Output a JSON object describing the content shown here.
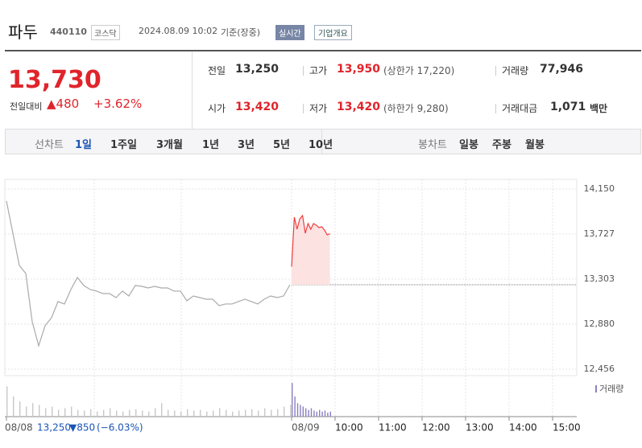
{
  "header": {
    "name": "파두",
    "code": "440110",
    "market": "코스닥",
    "datetime": "2024.08.09 10:02",
    "basis": "기준(장중)",
    "realtime": "실시간",
    "company": "기업개요"
  },
  "price": {
    "current": "13,730",
    "change_label": "전일대비",
    "change": "▲480",
    "change_pct": "+3.62%"
  },
  "stats": {
    "rows": [
      [
        {
          "label": "전일",
          "value": "13,250"
        },
        {
          "label": "고가",
          "value": "13,950",
          "sub": "(상한가 17,220)"
        },
        {
          "label": "거래량",
          "value": "77,946"
        }
      ],
      [
        {
          "label": "시가",
          "value": "13,420"
        },
        {
          "label": "저가",
          "value": "13,420",
          "sub": "(하한가 9,280)"
        },
        {
          "label": "거래대금",
          "value": "1,071",
          "unit": "백만"
        }
      ]
    ]
  },
  "tabs": {
    "line_label": "선차트",
    "line_periods": [
      "1일",
      "1주일",
      "3개월",
      "1년",
      "3년",
      "5년",
      "10년"
    ],
    "candle_label": "봉차트",
    "candle_periods": [
      "일봉",
      "주봉",
      "월봉"
    ]
  },
  "chart_data": {
    "type": "line",
    "xticks": [
      "08/08",
      "08/09",
      "10:00",
      "11:00",
      "12:00",
      "13:00",
      "14:00",
      "15:00"
    ],
    "ylim": [
      12456,
      14150
    ],
    "yticks": [
      {
        "value": 14150,
        "label": "14,150"
      },
      {
        "value": 13727,
        "label": "13,727"
      },
      {
        "value": 13303,
        "label": "13,303"
      },
      {
        "value": 12880,
        "label": "12,880"
      },
      {
        "value": 12456,
        "label": "12,456"
      }
    ],
    "reference": 13250,
    "series": [
      {
        "color": "#aaaaaa",
        "values": [
          14037,
          13734,
          13432,
          13356,
          12902,
          12676,
          12865,
          12940,
          13092,
          13069,
          13205,
          13318,
          13243,
          13205,
          13190,
          13167,
          13167,
          13129,
          13190,
          13144,
          13243,
          13235,
          13220,
          13235,
          13220,
          13220,
          13190,
          13190,
          13099,
          13144,
          13129,
          13114,
          13114,
          13054,
          13069,
          13069,
          13092,
          13114,
          13092,
          13069,
          13114,
          13144,
          13129,
          13144,
          13250
        ]
      },
      {
        "color": "#f03c3c",
        "values": [
          13420,
          13885,
          13772,
          13870,
          13900,
          13734,
          13825,
          13772,
          13825,
          13810,
          13787,
          13795,
          13765,
          13719,
          13730
        ]
      }
    ],
    "volume": {
      "name": "거래량",
      "vlim": [
        0,
        110
      ],
      "series": [
        {
          "color": "#c8c8c8",
          "values": [
            90,
            60,
            45,
            30,
            40,
            35,
            25,
            30,
            20,
            25,
            30,
            20,
            18,
            22,
            15,
            20,
            25,
            18,
            15,
            20,
            22,
            18,
            15,
            25,
            40,
            20,
            18,
            15,
            22,
            18,
            20,
            15,
            18,
            25,
            20,
            15,
            18,
            20,
            22,
            18,
            25,
            20,
            22,
            30,
            35
          ]
        },
        {
          "color": "#8a7fc0",
          "values": [
            100,
            60,
            40,
            35,
            30,
            25,
            20,
            25,
            18,
            15,
            20,
            15,
            18,
            12,
            15
          ]
        }
      ]
    },
    "summary": {
      "close": "13,250",
      "change": "▼850",
      "change_pct": "(−6.03%)"
    }
  }
}
